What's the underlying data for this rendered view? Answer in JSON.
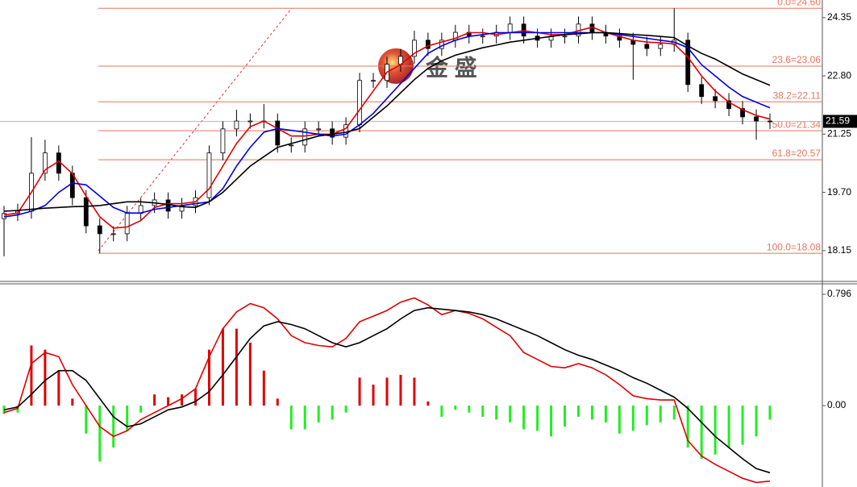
{
  "chart_data": [
    {
      "type": "candlestick",
      "watermark": "金 盛",
      "up_color": "#ffffff",
      "down_color": "#000000",
      "level_color": "#e8735a",
      "ylim": [
        17.31,
        24.82
      ],
      "yticks": [
        18.15,
        {
          "value": 19.7,
          "label": "19.70"
        },
        21.25,
        {
          "value": 22.8,
          "label": "22.80"
        },
        24.35
      ],
      "last_price": 21.59,
      "levels": [
        {
          "value": 24.6,
          "label": "0.0=24.60"
        },
        {
          "value": 23.06,
          "label": "23.6=23.06"
        },
        {
          "value": 22.11,
          "label": "38.2=22.11"
        },
        {
          "value": 21.34,
          "label": "50.0=21.34"
        },
        {
          "value": 20.57,
          "label": "61.8=20.57"
        },
        {
          "value": 18.08,
          "label": "100.0=18.08"
        }
      ],
      "open": [
        19.0,
        19.14,
        19.2,
        20.21,
        20.75,
        20.21,
        19.56,
        18.81,
        18.6,
        18.6,
        19.14,
        19.35,
        19.5,
        19.2,
        19.35,
        19.56,
        20.75,
        21.39,
        21.6,
        21.6,
        21.6,
        20.96,
        20.96,
        21.39,
        21.39,
        21.17,
        21.5,
        22.68,
        22.68,
        23.11,
        23.32,
        23.75,
        23.53,
        23.75,
        23.96,
        23.86,
        23.86,
        23.96,
        24.18,
        23.86,
        23.75,
        23.86,
        23.86,
        24.18,
        23.96,
        23.86,
        23.75,
        23.64,
        23.53,
        23.64,
        23.75,
        22.57,
        22.25,
        22.14,
        21.93,
        21.71,
        21.6
      ],
      "high": [
        19.34,
        19.4,
        21.17,
        21.1,
        20.95,
        20.41,
        19.76,
        19.01,
        18.8,
        19.34,
        19.55,
        19.7,
        19.7,
        19.55,
        19.76,
        20.95,
        21.59,
        21.9,
        21.8,
        22.05,
        21.8,
        21.16,
        21.59,
        21.59,
        21.59,
        21.7,
        22.88,
        22.88,
        23.31,
        23.52,
        24.0,
        23.95,
        23.95,
        24.16,
        24.16,
        24.06,
        24.16,
        24.38,
        24.38,
        24.06,
        24.06,
        24.06,
        24.38,
        24.38,
        24.16,
        24.06,
        23.95,
        23.84,
        23.84,
        24.6,
        23.95,
        22.77,
        22.45,
        22.34,
        22.13,
        21.91,
        21.8
      ],
      "low": [
        18.0,
        18.94,
        19.0,
        20.01,
        20.01,
        19.36,
        18.61,
        18.08,
        18.4,
        18.4,
        18.94,
        19.15,
        19.0,
        19.0,
        19.15,
        19.36,
        20.55,
        21.19,
        21.4,
        21.4,
        20.76,
        20.76,
        20.76,
        21.19,
        20.97,
        20.97,
        21.3,
        22.48,
        22.48,
        22.91,
        23.12,
        23.33,
        23.33,
        23.55,
        23.66,
        23.66,
        23.66,
        23.76,
        23.66,
        23.55,
        23.55,
        23.66,
        23.66,
        23.76,
        23.66,
        23.55,
        22.7,
        23.33,
        23.33,
        23.44,
        22.37,
        22.05,
        21.94,
        21.73,
        21.51,
        21.1,
        21.39
      ],
      "close": [
        19.14,
        19.2,
        20.21,
        20.75,
        20.21,
        19.56,
        18.81,
        18.6,
        18.6,
        19.14,
        19.35,
        19.5,
        19.2,
        19.35,
        19.56,
        20.75,
        21.39,
        21.6,
        21.6,
        21.6,
        20.96,
        20.96,
        21.39,
        21.39,
        21.17,
        21.5,
        22.68,
        22.68,
        23.11,
        23.32,
        23.75,
        23.53,
        23.75,
        23.96,
        23.86,
        23.86,
        23.96,
        24.18,
        23.86,
        23.75,
        23.86,
        23.86,
        24.18,
        23.96,
        23.86,
        23.75,
        23.64,
        23.53,
        23.64,
        23.75,
        22.57,
        22.25,
        22.14,
        21.93,
        21.71,
        21.6,
        21.59
      ],
      "series": [
        {
          "color": "#e00000",
          "values": [
            19.1,
            19.15,
            19.7,
            20.3,
            20.53,
            20.2,
            19.6,
            19.05,
            18.75,
            18.78,
            18.95,
            19.3,
            19.4,
            19.4,
            19.45,
            19.8,
            20.4,
            21.0,
            21.45,
            21.6,
            21.4,
            21.2,
            21.2,
            21.25,
            21.25,
            21.4,
            21.9,
            22.4,
            22.9,
            23.1,
            23.4,
            23.6,
            23.7,
            23.8,
            23.95,
            23.95,
            23.9,
            23.95,
            24.0,
            23.95,
            23.9,
            23.9,
            24.0,
            24.1,
            23.95,
            23.85,
            23.75,
            23.7,
            23.68,
            23.65,
            23.3,
            22.8,
            22.4,
            22.1,
            21.9,
            21.75,
            21.65
          ]
        },
        {
          "color": "#0000e0",
          "values": [
            19.05,
            19.1,
            19.2,
            19.35,
            19.7,
            19.95,
            19.9,
            19.6,
            19.3,
            19.15,
            19.15,
            19.25,
            19.3,
            19.35,
            19.4,
            19.45,
            19.8,
            20.4,
            20.9,
            21.3,
            21.4,
            21.35,
            21.3,
            21.25,
            21.2,
            21.25,
            21.5,
            21.8,
            22.2,
            22.6,
            23.0,
            23.4,
            23.6,
            23.75,
            23.85,
            23.9,
            23.95,
            23.95,
            23.95,
            23.95,
            23.95,
            23.95,
            23.95,
            23.95,
            23.95,
            23.9,
            23.85,
            23.8,
            23.75,
            23.7,
            23.55,
            23.1,
            22.8,
            22.5,
            22.25,
            22.1,
            21.95
          ]
        },
        {
          "color": "#000000",
          "values": [
            19.2,
            19.22,
            19.25,
            19.28,
            19.3,
            19.32,
            19.33,
            19.35,
            19.4,
            19.45,
            19.45,
            19.42,
            19.38,
            19.32,
            19.3,
            19.45,
            19.7,
            20.05,
            20.4,
            20.65,
            20.9,
            21.0,
            21.1,
            21.2,
            21.25,
            21.3,
            21.4,
            21.7,
            22.0,
            22.35,
            22.7,
            23.0,
            23.2,
            23.35,
            23.45,
            23.55,
            23.62,
            23.7,
            23.75,
            23.8,
            23.85,
            23.9,
            23.92,
            23.95,
            23.95,
            23.93,
            23.9,
            23.88,
            23.85,
            23.82,
            23.6,
            23.4,
            23.25,
            23.05,
            22.85,
            22.7,
            22.55
          ]
        }
      ]
    },
    {
      "type": "macd",
      "up_color": "#e00000",
      "down_color": "#22ee22",
      "ylim": [
        -0.559,
        0.871
      ],
      "yticks": [
        0.796,
        {
          "value": 0,
          "label": "0.00"
        }
      ],
      "histogram": [
        -0.06,
        -0.05,
        0.43,
        0.4,
        0.25,
        0.05,
        -0.2,
        -0.4,
        -0.3,
        -0.18,
        -0.05,
        0.08,
        0.06,
        0.08,
        0.12,
        0.4,
        0.55,
        0.55,
        0.45,
        0.25,
        0.05,
        -0.17,
        -0.17,
        -0.12,
        -0.1,
        -0.05,
        0.2,
        0.15,
        0.2,
        0.22,
        0.2,
        0.03,
        -0.08,
        -0.03,
        -0.05,
        -0.08,
        -0.1,
        -0.12,
        -0.17,
        -0.18,
        -0.22,
        -0.15,
        -0.08,
        -0.1,
        -0.12,
        -0.2,
        -0.18,
        -0.14,
        -0.12,
        -0.1,
        -0.3,
        -0.38,
        -0.35,
        -0.3,
        -0.28,
        -0.22,
        -0.1
      ],
      "series": [
        {
          "color": "#e00000",
          "values": [
            -0.05,
            -0.02,
            0.3,
            0.38,
            0.35,
            0.15,
            0.0,
            -0.15,
            -0.22,
            -0.18,
            -0.1,
            -0.05,
            0.0,
            0.05,
            0.12,
            0.35,
            0.55,
            0.67,
            0.73,
            0.7,
            0.62,
            0.5,
            0.45,
            0.43,
            0.42,
            0.48,
            0.6,
            0.64,
            0.68,
            0.74,
            0.77,
            0.72,
            0.65,
            0.68,
            0.66,
            0.62,
            0.56,
            0.5,
            0.38,
            0.33,
            0.28,
            0.27,
            0.3,
            0.27,
            0.22,
            0.15,
            0.07,
            0.05,
            0.04,
            0.04,
            -0.25,
            -0.36,
            -0.42,
            -0.47,
            -0.52,
            -0.55,
            -0.54
          ]
        },
        {
          "color": "#000000",
          "values": [
            -0.03,
            -0.01,
            0.08,
            0.18,
            0.25,
            0.25,
            0.18,
            0.05,
            -0.08,
            -0.15,
            -0.13,
            -0.08,
            -0.03,
            -0.01,
            0.03,
            0.1,
            0.22,
            0.35,
            0.48,
            0.57,
            0.6,
            0.58,
            0.55,
            0.5,
            0.45,
            0.42,
            0.45,
            0.5,
            0.55,
            0.62,
            0.68,
            0.7,
            0.69,
            0.68,
            0.67,
            0.65,
            0.62,
            0.58,
            0.54,
            0.5,
            0.45,
            0.4,
            0.36,
            0.33,
            0.29,
            0.25,
            0.2,
            0.16,
            0.11,
            0.06,
            -0.02,
            -0.12,
            -0.22,
            -0.3,
            -0.38,
            -0.45,
            -0.48
          ]
        }
      ]
    }
  ]
}
